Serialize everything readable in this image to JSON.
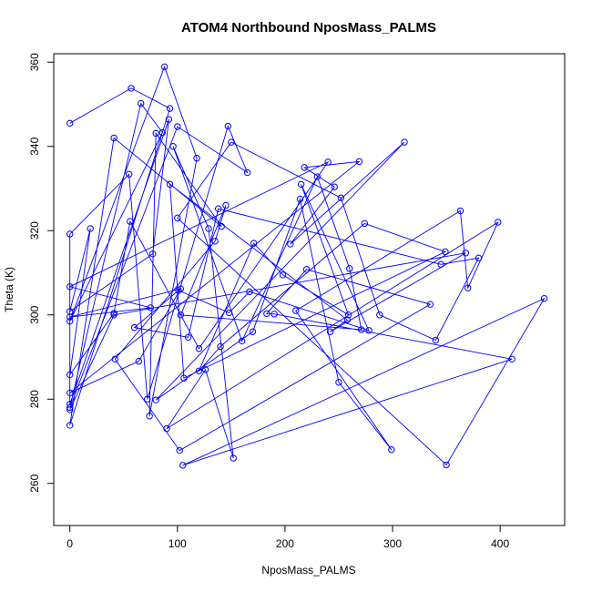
{
  "chart_data": {
    "type": "line",
    "title": "ATOM4 Northbound NposMass_PALMS",
    "xlabel": "NposMass_PALMS",
    "ylabel": "Theta (K)",
    "xlim": [
      -15,
      460
    ],
    "ylim": [
      250,
      362
    ],
    "xticks": [
      0,
      100,
      200,
      300,
      400
    ],
    "yticks": [
      260,
      280,
      300,
      320,
      340,
      360
    ],
    "grid": false,
    "legend": "none",
    "series_color": "#0000ff",
    "marker": "open-circle",
    "points": [
      {
        "x": 0,
        "y": 345.5
      },
      {
        "x": 57,
        "y": 353.8
      },
      {
        "x": 93,
        "y": 349.0
      },
      {
        "x": 0,
        "y": 273.8
      },
      {
        "x": 41,
        "y": 342.0
      },
      {
        "x": 141,
        "y": 321.0
      },
      {
        "x": 80,
        "y": 343.1
      },
      {
        "x": 74,
        "y": 276.0
      },
      {
        "x": 118,
        "y": 337.2
      },
      {
        "x": 88,
        "y": 358.9
      },
      {
        "x": 0,
        "y": 298.5
      },
      {
        "x": 86,
        "y": 343.3
      },
      {
        "x": 66,
        "y": 350.2
      },
      {
        "x": 0,
        "y": 278.0
      },
      {
        "x": 100,
        "y": 344.7
      },
      {
        "x": 165,
        "y": 333.8
      },
      {
        "x": 147,
        "y": 344.8
      },
      {
        "x": 72,
        "y": 280.0
      },
      {
        "x": 55,
        "y": 333.4
      },
      {
        "x": 0,
        "y": 319.2
      },
      {
        "x": 0,
        "y": 278.8
      },
      {
        "x": 92,
        "y": 346.4
      },
      {
        "x": 77,
        "y": 314.5
      },
      {
        "x": 0,
        "y": 300.8
      },
      {
        "x": 19,
        "y": 320.5
      },
      {
        "x": 0,
        "y": 285.8
      },
      {
        "x": 41,
        "y": 300.4
      },
      {
        "x": 56,
        "y": 322.2
      },
      {
        "x": 120,
        "y": 292.0
      },
      {
        "x": 240,
        "y": 336.3
      },
      {
        "x": 0,
        "y": 306.7
      },
      {
        "x": 75,
        "y": 301.7
      },
      {
        "x": 0,
        "y": 299.5
      },
      {
        "x": 103,
        "y": 306.2
      },
      {
        "x": 64,
        "y": 289.0
      },
      {
        "x": 0,
        "y": 281.5
      },
      {
        "x": 269,
        "y": 336.4
      },
      {
        "x": 218,
        "y": 335.0
      },
      {
        "x": 246,
        "y": 330.4
      },
      {
        "x": 205,
        "y": 316.8
      },
      {
        "x": 311,
        "y": 341.0
      },
      {
        "x": 80,
        "y": 279.8
      },
      {
        "x": 170,
        "y": 296.0
      },
      {
        "x": 214,
        "y": 327.5
      },
      {
        "x": 250,
        "y": 284.0
      },
      {
        "x": 299,
        "y": 268.0
      },
      {
        "x": 210,
        "y": 301.0
      },
      {
        "x": 363,
        "y": 324.7
      },
      {
        "x": 370,
        "y": 306.4
      },
      {
        "x": 398,
        "y": 322.0
      },
      {
        "x": 90,
        "y": 273.0
      },
      {
        "x": 126,
        "y": 287.0
      },
      {
        "x": 152,
        "y": 266.0
      },
      {
        "x": 129,
        "y": 320.5
      },
      {
        "x": 96,
        "y": 340.0
      },
      {
        "x": 160,
        "y": 293.8
      },
      {
        "x": 230,
        "y": 332.8
      },
      {
        "x": 260,
        "y": 311.0
      },
      {
        "x": 271,
        "y": 296.5
      },
      {
        "x": 103,
        "y": 300.0
      },
      {
        "x": 145,
        "y": 326.0
      },
      {
        "x": 135,
        "y": 317.5
      },
      {
        "x": 42,
        "y": 289.5
      },
      {
        "x": 102,
        "y": 267.8
      },
      {
        "x": 335,
        "y": 302.5
      },
      {
        "x": 220,
        "y": 310.8
      },
      {
        "x": 183,
        "y": 300.3
      },
      {
        "x": 190,
        "y": 300.2
      },
      {
        "x": 411,
        "y": 289.5
      },
      {
        "x": 105,
        "y": 264.3
      },
      {
        "x": 441,
        "y": 303.9
      },
      {
        "x": 350,
        "y": 264.4
      },
      {
        "x": 100,
        "y": 323.0
      },
      {
        "x": 150,
        "y": 341.0
      },
      {
        "x": 252,
        "y": 327.8
      },
      {
        "x": 288,
        "y": 300.0
      },
      {
        "x": 340,
        "y": 294.0
      },
      {
        "x": 380,
        "y": 313.5
      },
      {
        "x": 345,
        "y": 312.0
      },
      {
        "x": 138,
        "y": 325.2
      },
      {
        "x": 110,
        "y": 294.7
      },
      {
        "x": 60,
        "y": 297.0
      },
      {
        "x": 101,
        "y": 305.8
      },
      {
        "x": 148,
        "y": 300.5
      },
      {
        "x": 167,
        "y": 305.5
      },
      {
        "x": 278,
        "y": 296.3
      },
      {
        "x": 215,
        "y": 331.0
      },
      {
        "x": 259,
        "y": 300.0
      },
      {
        "x": 198,
        "y": 309.5
      },
      {
        "x": 171,
        "y": 317.0
      },
      {
        "x": 120,
        "y": 286.7
      },
      {
        "x": 140,
        "y": 292.5
      },
      {
        "x": 274,
        "y": 321.7
      },
      {
        "x": 349,
        "y": 315.0
      },
      {
        "x": 106,
        "y": 285.0
      },
      {
        "x": 93,
        "y": 331.0
      },
      {
        "x": 258,
        "y": 298.8
      },
      {
        "x": 242,
        "y": 296.0
      },
      {
        "x": 368,
        "y": 314.7
      },
      {
        "x": 41,
        "y": 300.0
      },
      {
        "x": 0,
        "y": 277.5
      }
    ]
  }
}
